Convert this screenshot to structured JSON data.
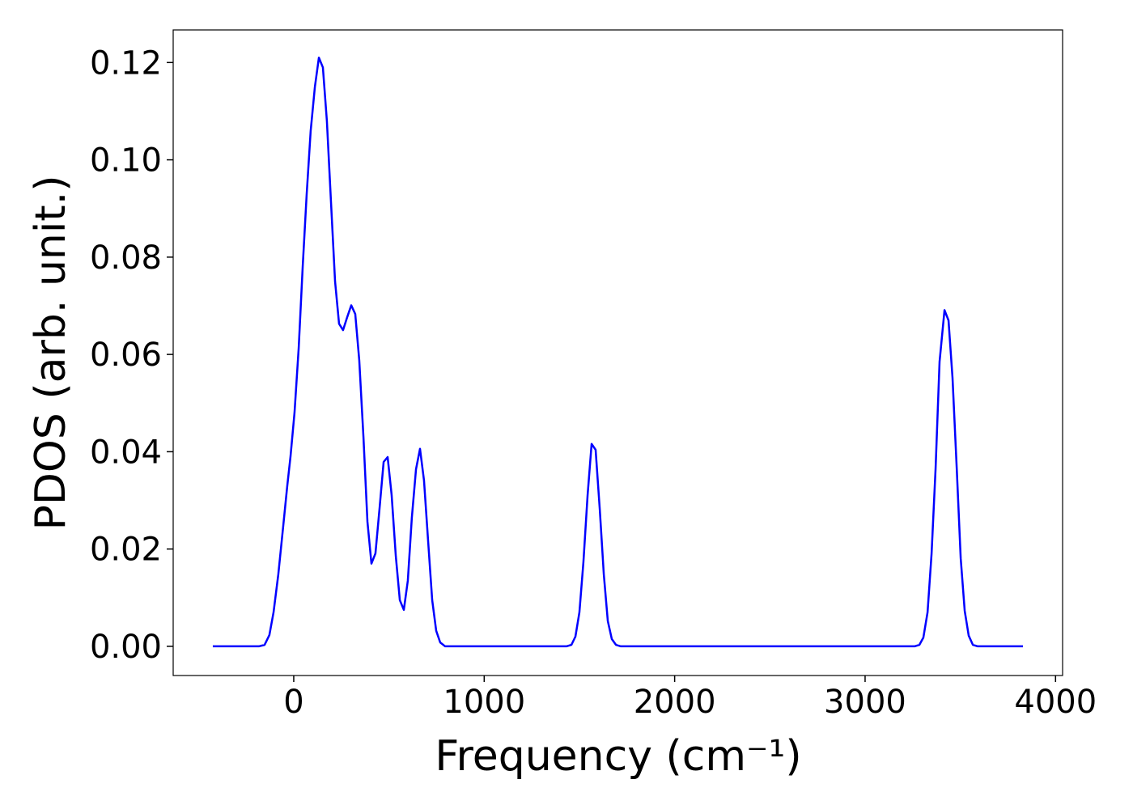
{
  "chart_data": {
    "type": "line",
    "x_label": "Frequency (cm⁻¹)",
    "y_label": "PDOS (arb. unit.)",
    "x": [
      -425,
      -183,
      -153,
      -128,
      -106,
      -81,
      -55,
      -34,
      -17,
      4,
      26,
      47,
      68,
      89,
      111,
      132,
      153,
      174,
      196,
      217,
      238,
      259,
      281,
      302,
      323,
      344,
      366,
      387,
      408,
      429,
      450,
      472,
      493,
      514,
      536,
      557,
      578,
      599,
      620,
      642,
      663,
      684,
      706,
      727,
      748,
      769,
      795,
      1432,
      1458,
      1479,
      1500,
      1521,
      1543,
      1564,
      1585,
      1607,
      1628,
      1649,
      1670,
      1692,
      1717,
      3260,
      3285,
      3306,
      3328,
      3349,
      3370,
      3391,
      3417,
      3438,
      3459,
      3481,
      3502,
      3523,
      3544,
      3566,
      3591,
      3829
    ],
    "series": [
      {
        "color": "#0000ff",
        "values": [
          0,
          0,
          0.0003,
          0.0023,
          0.007,
          0.0148,
          0.0248,
          0.033,
          0.039,
          0.048,
          0.0613,
          0.078,
          0.093,
          0.106,
          0.115,
          0.121,
          0.119,
          0.108,
          0.091,
          0.075,
          0.0663,
          0.065,
          0.0677,
          0.0701,
          0.0683,
          0.0588,
          0.043,
          0.0256,
          0.017,
          0.0191,
          0.0281,
          0.0379,
          0.0389,
          0.0311,
          0.0185,
          0.0095,
          0.0075,
          0.0135,
          0.0264,
          0.0364,
          0.0406,
          0.0341,
          0.0214,
          0.0095,
          0.0032,
          0.0008,
          0,
          0,
          0.0003,
          0.002,
          0.007,
          0.0173,
          0.0311,
          0.0416,
          0.0404,
          0.0281,
          0.0148,
          0.0052,
          0.0015,
          0.0003,
          0,
          0,
          0.0003,
          0.0018,
          0.007,
          0.019,
          0.0364,
          0.0585,
          0.0691,
          0.067,
          0.0552,
          0.0367,
          0.0181,
          0.0073,
          0.0022,
          0.0003,
          0,
          0
        ]
      }
    ],
    "xlim": [
      -633,
      4037
    ],
    "ylim": [
      -0.006,
      0.1267
    ],
    "xticks": [
      0,
      1000,
      2000,
      3000,
      4000
    ],
    "yticks": [
      {
        "value": 0,
        "label": "0.00"
      },
      {
        "value": 0.02,
        "label": "0.02"
      },
      {
        "value": 0.04,
        "label": "0.04"
      },
      {
        "value": 0.06,
        "label": "0.06"
      },
      {
        "value": 0.08,
        "label": "0.08"
      },
      {
        "value": 0.1,
        "label": "0.10"
      },
      {
        "value": 0.12,
        "label": "0.12"
      }
    ]
  }
}
